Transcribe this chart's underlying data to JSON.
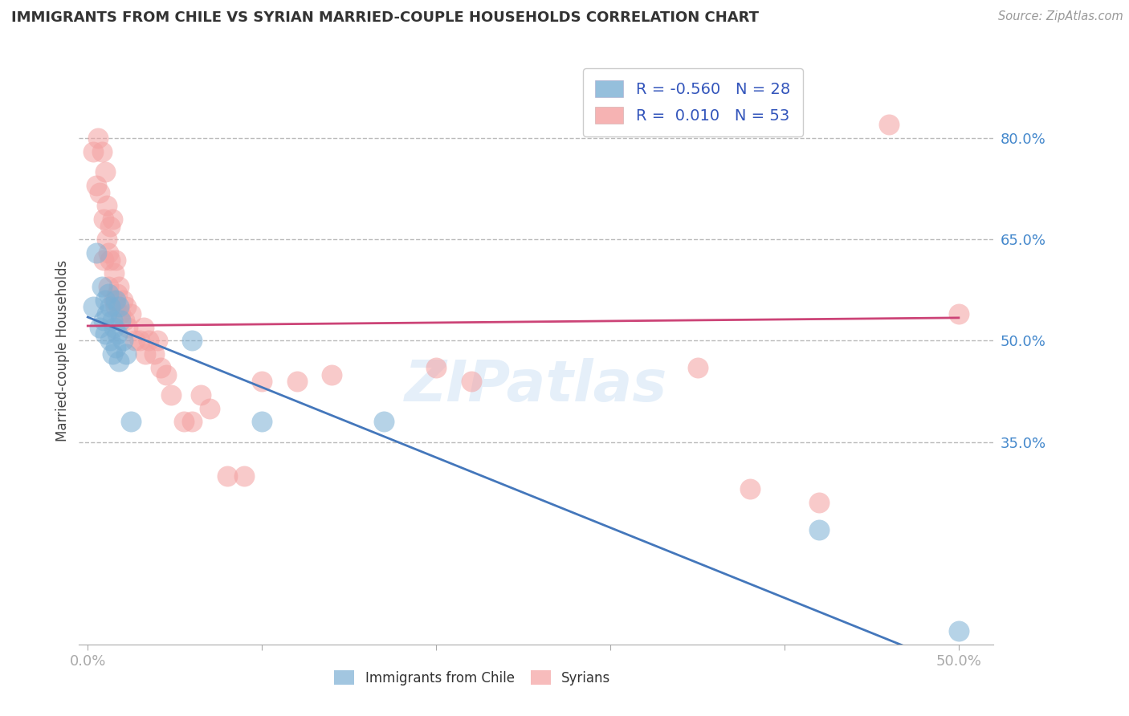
{
  "title": "IMMIGRANTS FROM CHILE VS SYRIAN MARRIED-COUPLE HOUSEHOLDS CORRELATION CHART",
  "source": "Source: ZipAtlas.com",
  "ylabel": "Married-couple Households",
  "watermark": "ZIPatlas",
  "legend_blue_r": "-0.560",
  "legend_blue_n": "28",
  "legend_pink_r": "0.010",
  "legend_pink_n": "53",
  "y_ticks": [
    0.35,
    0.5,
    0.65,
    0.8
  ],
  "y_tick_labels": [
    "35.0%",
    "50.0%",
    "65.0%",
    "80.0%"
  ],
  "xlim": [
    -0.005,
    0.52
  ],
  "ylim": [
    0.05,
    0.92
  ],
  "blue_color": "#7BAFD4",
  "pink_color": "#F4A0A0",
  "blue_line_color": "#4477BB",
  "pink_line_color": "#CC4477",
  "background_color": "#FFFFFF",
  "grid_color": "#BBBBBB",
  "tick_color": "#4488CC",
  "title_color": "#333333",
  "source_color": "#999999",
  "blue_points_x": [
    0.003,
    0.005,
    0.007,
    0.008,
    0.009,
    0.01,
    0.01,
    0.011,
    0.012,
    0.013,
    0.013,
    0.014,
    0.014,
    0.015,
    0.016,
    0.016,
    0.017,
    0.018,
    0.018,
    0.019,
    0.02,
    0.022,
    0.025,
    0.06,
    0.1,
    0.17,
    0.42,
    0.5
  ],
  "blue_points_y": [
    0.55,
    0.63,
    0.52,
    0.58,
    0.53,
    0.56,
    0.51,
    0.54,
    0.57,
    0.55,
    0.5,
    0.53,
    0.48,
    0.52,
    0.56,
    0.49,
    0.51,
    0.55,
    0.47,
    0.53,
    0.5,
    0.48,
    0.38,
    0.5,
    0.38,
    0.38,
    0.22,
    0.07
  ],
  "pink_points_x": [
    0.003,
    0.005,
    0.006,
    0.007,
    0.008,
    0.009,
    0.009,
    0.01,
    0.011,
    0.011,
    0.012,
    0.012,
    0.013,
    0.013,
    0.014,
    0.015,
    0.015,
    0.016,
    0.016,
    0.017,
    0.018,
    0.019,
    0.02,
    0.021,
    0.022,
    0.023,
    0.025,
    0.027,
    0.03,
    0.032,
    0.033,
    0.035,
    0.038,
    0.04,
    0.042,
    0.045,
    0.048,
    0.055,
    0.06,
    0.065,
    0.07,
    0.08,
    0.09,
    0.1,
    0.12,
    0.14,
    0.2,
    0.22,
    0.35,
    0.38,
    0.42,
    0.46,
    0.5
  ],
  "pink_points_y": [
    0.78,
    0.73,
    0.8,
    0.72,
    0.78,
    0.68,
    0.62,
    0.75,
    0.7,
    0.65,
    0.63,
    0.58,
    0.67,
    0.62,
    0.68,
    0.6,
    0.56,
    0.62,
    0.55,
    0.57,
    0.58,
    0.54,
    0.56,
    0.53,
    0.55,
    0.52,
    0.54,
    0.5,
    0.5,
    0.52,
    0.48,
    0.5,
    0.48,
    0.5,
    0.46,
    0.45,
    0.42,
    0.38,
    0.38,
    0.42,
    0.4,
    0.3,
    0.3,
    0.44,
    0.44,
    0.45,
    0.46,
    0.44,
    0.46,
    0.28,
    0.26,
    0.82,
    0.54
  ],
  "blue_line_x": [
    0.0,
    0.5
  ],
  "blue_line_y": [
    0.535,
    0.015
  ],
  "pink_line_x": [
    0.0,
    0.5
  ],
  "pink_line_y": [
    0.522,
    0.534
  ]
}
